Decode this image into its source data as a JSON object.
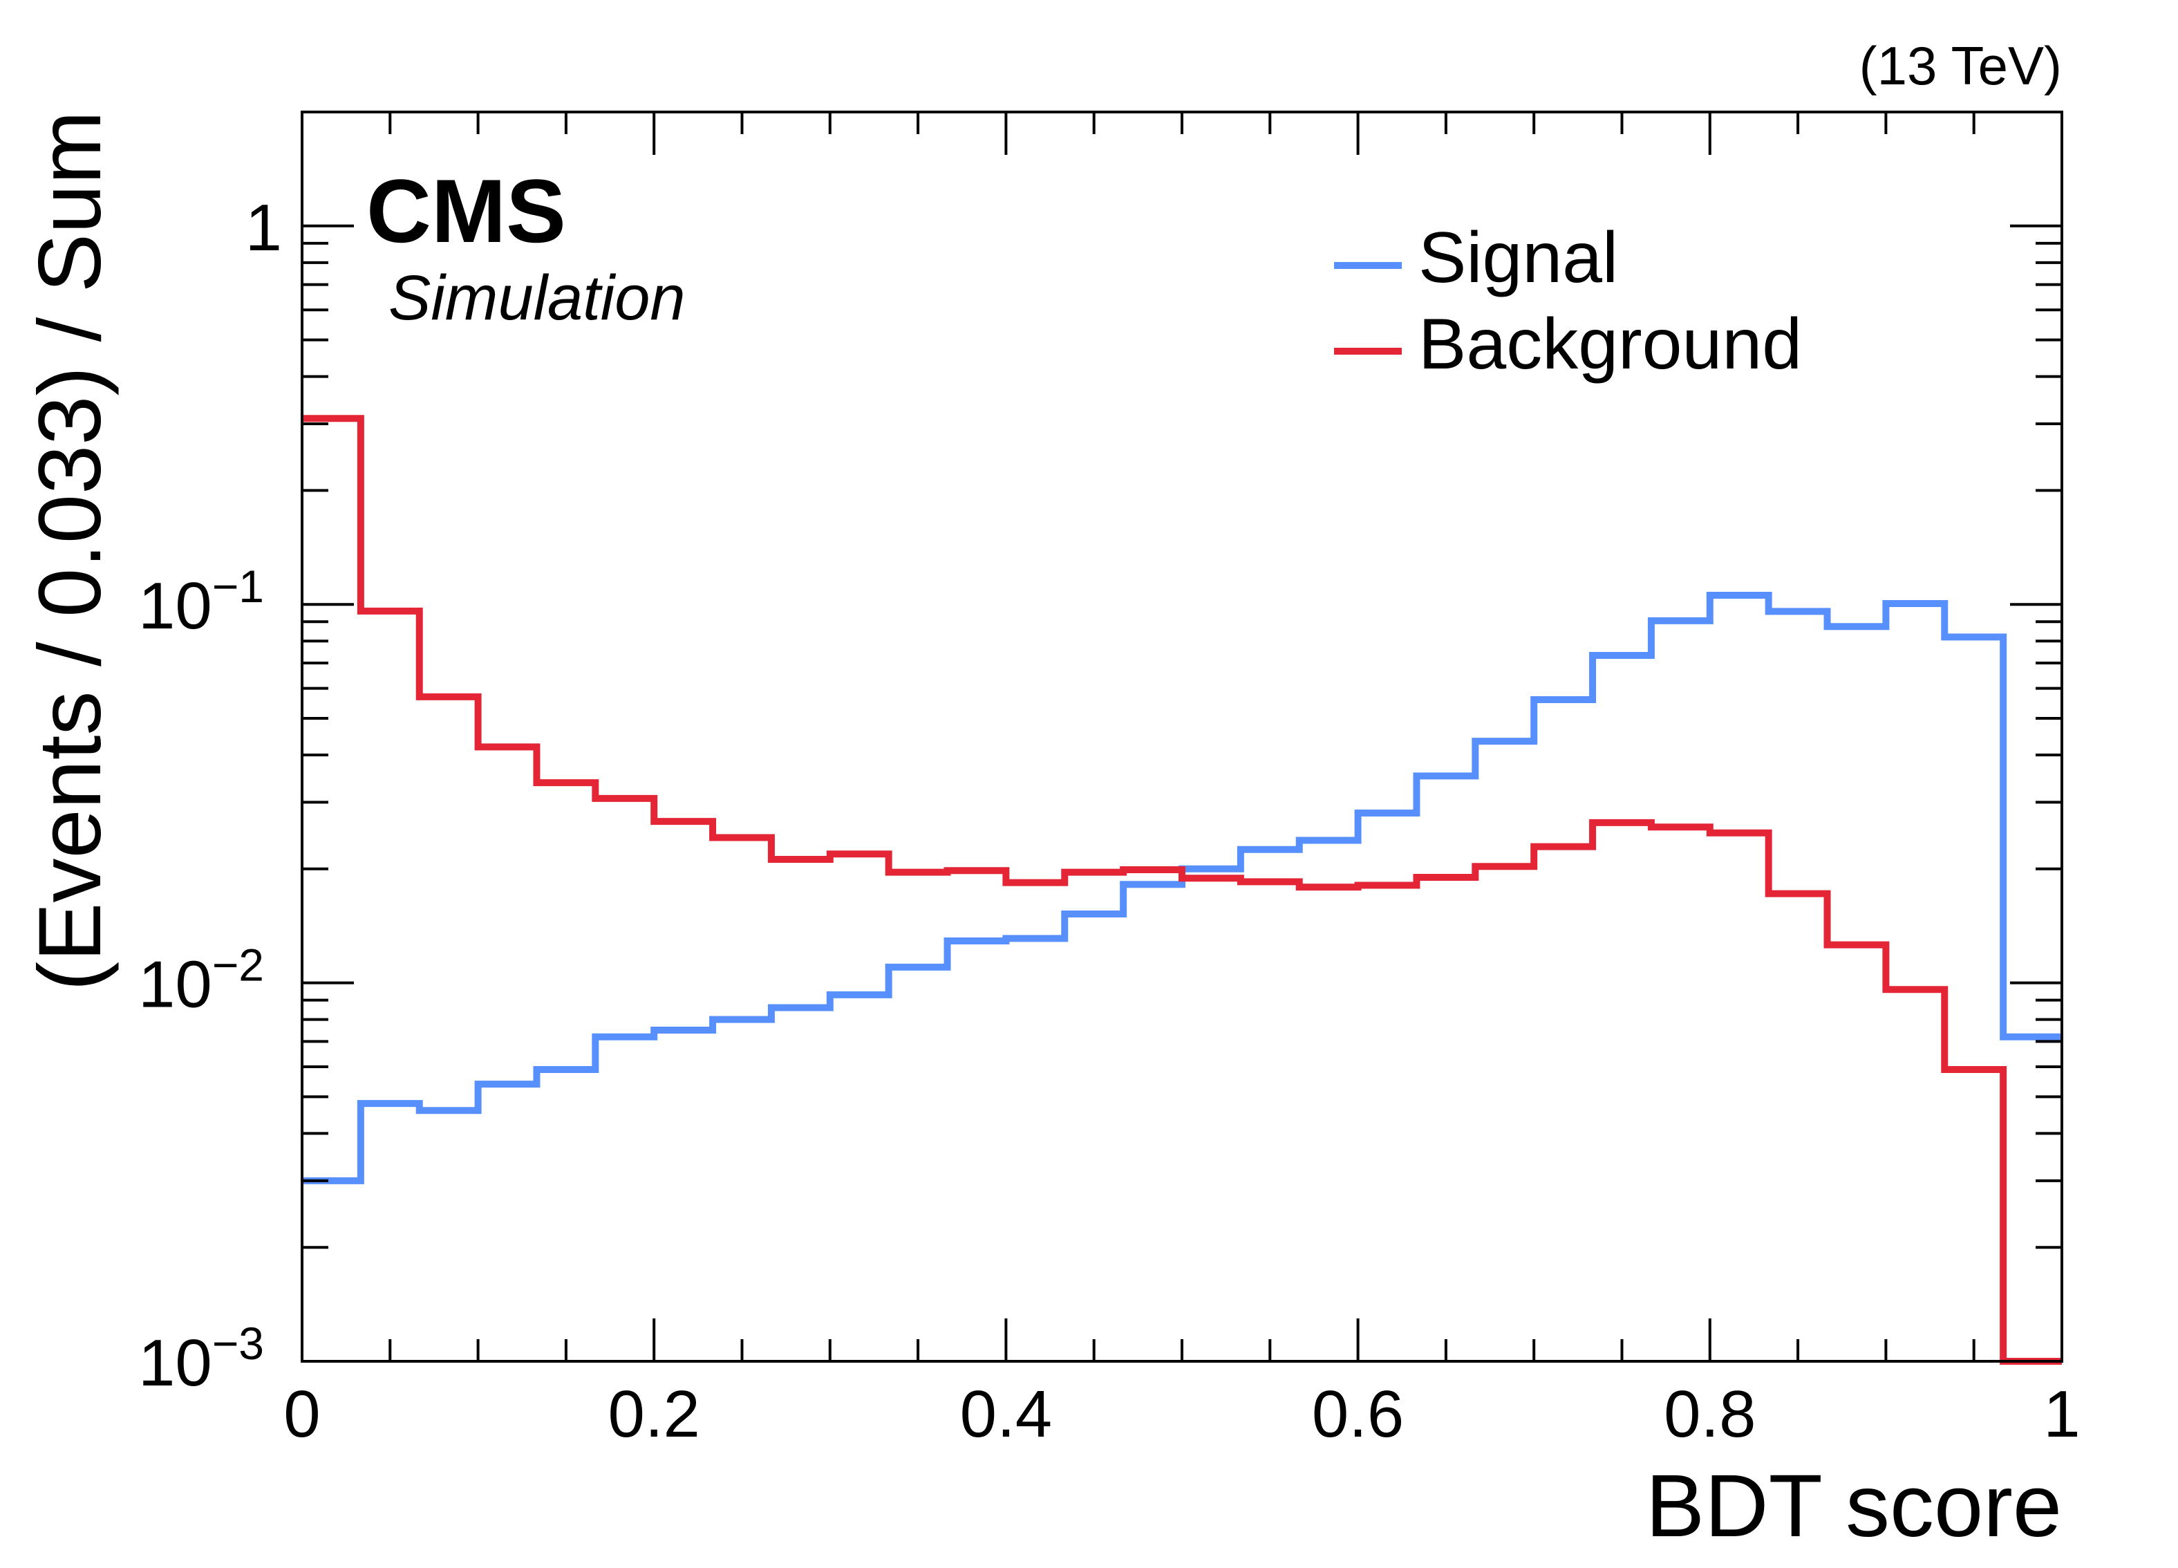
{
  "chart_data": {
    "type": "histogram-step",
    "energy_label": "(13 TeV)",
    "experiment": "CMS",
    "subtitle": "Simulation",
    "xlabel": "BDT score",
    "ylabel": "(Events / 0.033) / Sum",
    "xlim": [
      0,
      1
    ],
    "ylim": [
      0.001,
      2
    ],
    "yscale": "log",
    "bin_width": 0.0333,
    "n_bins": 30,
    "x_ticks": [
      "0",
      "0.2",
      "0.4",
      "0.6",
      "0.8",
      "1"
    ],
    "y_ticks": [
      {
        "value": 1,
        "base": "1",
        "exp": ""
      },
      {
        "value": 0.1,
        "base": "10",
        "exp": "−1"
      },
      {
        "value": 0.01,
        "base": "10",
        "exp": "−2"
      },
      {
        "value": 0.001,
        "base": "10",
        "exp": "−3"
      }
    ],
    "legend_position": "top-right",
    "series": [
      {
        "name": "Signal",
        "color": "#5790fc",
        "values": [
          0.003,
          0.0048,
          0.0046,
          0.0054,
          0.0059,
          0.0072,
          0.0075,
          0.008,
          0.0086,
          0.0093,
          0.011,
          0.0129,
          0.0131,
          0.0152,
          0.0182,
          0.02,
          0.0225,
          0.0238,
          0.0281,
          0.0352,
          0.0435,
          0.056,
          0.0733,
          0.0905,
          0.1057,
          0.0958,
          0.0874,
          0.1005,
          0.082,
          0.0072
        ]
      },
      {
        "name": "Background",
        "color": "#e42536",
        "values": [
          0.31,
          0.096,
          0.057,
          0.042,
          0.0338,
          0.0307,
          0.0267,
          0.0242,
          0.0212,
          0.0219,
          0.0196,
          0.0198,
          0.0184,
          0.0196,
          0.0199,
          0.0189,
          0.0185,
          0.0179,
          0.0181,
          0.019,
          0.0203,
          0.0229,
          0.0265,
          0.0258,
          0.0249,
          0.0172,
          0.0126,
          0.0096,
          0.0059,
          0.001
        ]
      }
    ]
  }
}
